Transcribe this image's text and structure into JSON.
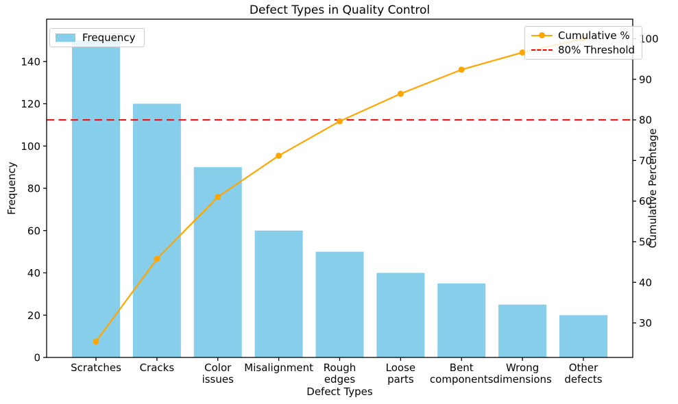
{
  "colors": {
    "bar": "#87CEEB",
    "cumulative_line": "#FFA500",
    "threshold_line": "#FF0000",
    "text": "#000000",
    "frame": "#000000",
    "legend_border": "#cccccc"
  },
  "chart_data": {
    "type": "bar",
    "subtype": "pareto (bars + cumulative line, dual y-axis)",
    "title": "Defect Types in Quality Control",
    "xlabel": "Defect Types",
    "ylabel_left": "Frequency",
    "ylabel_right": "Cumulative Percentage",
    "grid": false,
    "categories": [
      "Scratches",
      "Cracks",
      "Color\nissues",
      "Misalignment",
      "Rough\nedges",
      "Loose\nparts",
      "Bent\ncomponents",
      "Wrong\ndimensions",
      "Other\ndefects"
    ],
    "series": [
      {
        "name": "Frequency",
        "type": "bar",
        "axis": "left",
        "color": "#87CEEB",
        "values": [
          150,
          120,
          90,
          60,
          50,
          40,
          35,
          25,
          20
        ]
      },
      {
        "name": "Cumulative %",
        "type": "line",
        "axis": "right",
        "color": "#FFA500",
        "marker": "circle",
        "values": [
          25.42,
          45.76,
          61.02,
          71.19,
          79.66,
          86.44,
          92.37,
          96.61,
          100.0
        ]
      }
    ],
    "threshold_line": {
      "label": "80% Threshold",
      "value": 80,
      "color": "#FF0000",
      "style": "dashed"
    },
    "yticks_left": [
      0,
      20,
      40,
      60,
      80,
      100,
      120,
      140
    ],
    "yticks_right": [
      30,
      40,
      50,
      60,
      70,
      80,
      90,
      100
    ],
    "ylim_left": [
      0,
      160
    ],
    "ylim_right": [
      21.5,
      104.8
    ],
    "legend_left": {
      "position": "upper-left",
      "items": [
        {
          "label": "Frequency",
          "swatch": "bar-patch",
          "color": "#87CEEB"
        }
      ]
    },
    "legend_right": {
      "position": "upper-right",
      "items": [
        {
          "label": "Cumulative %",
          "swatch": "line-with-marker",
          "color": "#FFA500"
        },
        {
          "label": "80% Threshold",
          "swatch": "dashed-line",
          "color": "#FF0000"
        }
      ]
    }
  }
}
